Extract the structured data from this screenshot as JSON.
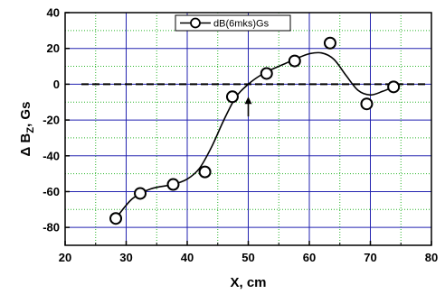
{
  "chart_data": {
    "type": "scatter",
    "title": "",
    "xlabel": "X, cm",
    "ylabel_main": "Δ B",
    "ylabel_sub": "Z",
    "ylabel_unit": ", Gs",
    "xlim": [
      20,
      80
    ],
    "ylim": [
      -90,
      40
    ],
    "x_ticks": [
      20,
      30,
      40,
      50,
      60,
      70,
      80
    ],
    "y_ticks": [
      40,
      20,
      0,
      -20,
      -40,
      -60,
      -80
    ],
    "grid": "major blue solid, minor green dotted",
    "legend": {
      "placement": "top-center",
      "entries": [
        "dB(6mks)Gs"
      ]
    },
    "series": [
      {
        "name": "dB(6mks)Gs",
        "marker": "open-circle",
        "x": [
          28.3,
          32.3,
          37.7,
          42.9,
          47.4,
          53.0,
          57.6,
          63.4,
          69.4,
          73.8
        ],
        "y": [
          -75,
          -61,
          -56,
          -49,
          -7,
          6,
          13,
          23,
          -11,
          -1.5
        ]
      }
    ],
    "fit_curve": {
      "x": [
        28.3,
        31,
        34,
        37.7,
        40,
        42,
        44,
        46,
        48,
        50,
        52,
        54,
        56,
        58,
        60,
        62,
        64,
        66,
        68,
        70,
        72,
        73.8
      ],
      "y": [
        -75,
        -64,
        -58.5,
        -56,
        -53,
        -47,
        -35,
        -20,
        -7,
        0,
        5,
        8.5,
        11.5,
        14.5,
        17,
        17.5,
        14,
        5,
        -3.5,
        -6,
        -4,
        -1.5
      ]
    },
    "zero_line": {
      "y": 0,
      "style": "dashed"
    },
    "annotation_arrow": {
      "x": 50,
      "y_from": -18,
      "y_to": -7
    },
    "colors": {
      "grid_major": "#2323b0",
      "grid_minor": "#28b428",
      "series": "#000000"
    }
  }
}
